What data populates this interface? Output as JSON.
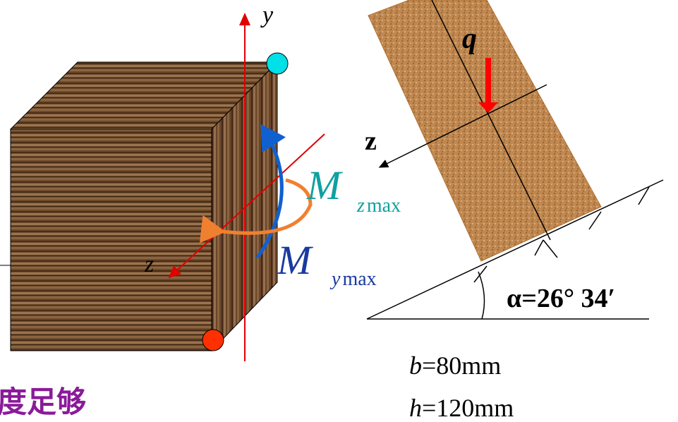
{
  "cube": {
    "y_axis_label": "y",
    "z_axis_label": "z",
    "moment_z": {
      "symbol": "M",
      "subscript_var": "z",
      "subscript_text": "max"
    },
    "moment_y": {
      "symbol": "M",
      "subscript_var": "y",
      "subscript_text": "max"
    }
  },
  "beam": {
    "load_label": "q",
    "z_axis_label": "z",
    "angle_label": "α=26° 34′"
  },
  "dimensions": [
    {
      "symbol": "b",
      "value": "=80mm"
    },
    {
      "symbol": "h",
      "value": "=120mm"
    }
  ],
  "caption": "度足够"
}
